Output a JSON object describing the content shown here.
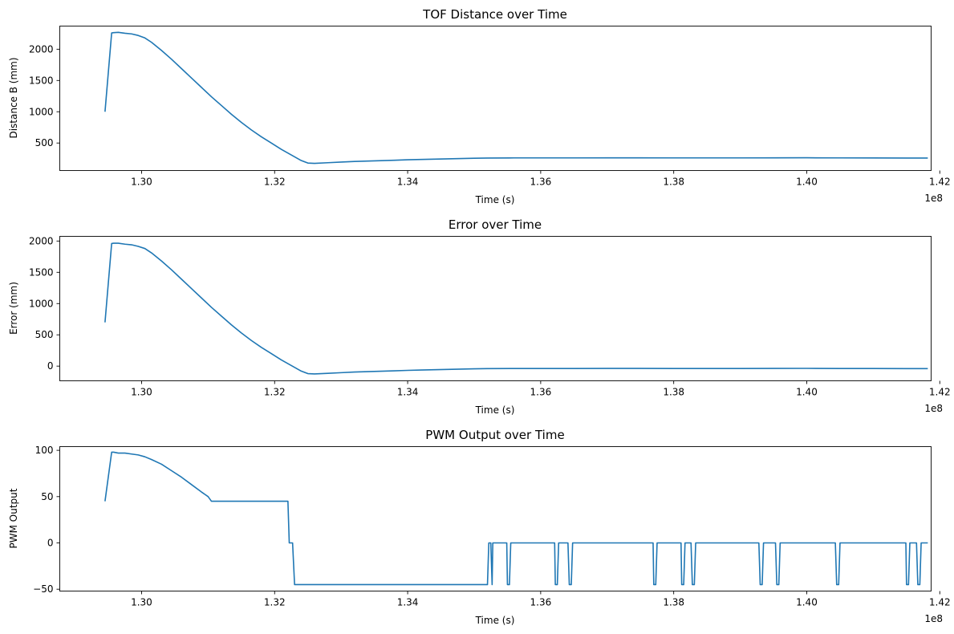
{
  "chart_data": [
    {
      "type": "line",
      "title": "TOF Distance over Time",
      "xlabel": "Time (s)",
      "ylabel": "Distance B (mm)",
      "x_offset_label": "1e8",
      "xlim": [
        1.2877,
        1.4187
      ],
      "ylim": [
        60,
        2370
      ],
      "xticks": [
        1.3,
        1.32,
        1.34,
        1.36,
        1.38,
        1.4,
        1.42
      ],
      "xtick_labels": [
        "1.30",
        "1.32",
        "1.34",
        "1.36",
        "1.38",
        "1.40",
        "1.42"
      ],
      "yticks": [
        500,
        1000,
        1500,
        2000
      ],
      "ytick_labels": [
        "500",
        "1000",
        "1500",
        "2000"
      ],
      "series": [
        {
          "name": "Distance B",
          "color": "#1f77b4",
          "x": [
            1.2945,
            1.2955,
            1.2958,
            1.2965,
            1.2975,
            1.2985,
            1.2995,
            1.3005,
            1.3015,
            1.303,
            1.3045,
            1.306,
            1.3075,
            1.309,
            1.3105,
            1.312,
            1.3135,
            1.315,
            1.3165,
            1.318,
            1.3195,
            1.321,
            1.3225,
            1.324,
            1.325,
            1.326,
            1.328,
            1.33,
            1.332,
            1.334,
            1.336,
            1.338,
            1.34,
            1.342,
            1.344,
            1.346,
            1.348,
            1.35,
            1.352,
            1.356,
            1.36,
            1.365,
            1.37,
            1.375,
            1.38,
            1.385,
            1.39,
            1.395,
            1.4,
            1.405,
            1.41,
            1.415,
            1.4182
          ],
          "values": [
            1000,
            2260,
            2265,
            2270,
            2255,
            2245,
            2220,
            2180,
            2110,
            1980,
            1840,
            1690,
            1540,
            1390,
            1240,
            1100,
            960,
            830,
            710,
            600,
            500,
            400,
            310,
            220,
            180,
            175,
            185,
            195,
            205,
            212,
            218,
            225,
            232,
            237,
            242,
            247,
            252,
            257,
            260,
            262,
            262,
            262,
            263,
            263,
            262,
            262,
            262,
            263,
            264,
            262,
            261,
            260,
            260
          ]
        }
      ]
    },
    {
      "type": "line",
      "title": "Error over Time",
      "xlabel": "Time (s)",
      "ylabel": "Error (mm)",
      "x_offset_label": "1e8",
      "xlim": [
        1.2877,
        1.4187
      ],
      "ylim": [
        -235,
        2075
      ],
      "xticks": [
        1.3,
        1.32,
        1.34,
        1.36,
        1.38,
        1.4,
        1.42
      ],
      "xtick_labels": [
        "1.30",
        "1.32",
        "1.34",
        "1.36",
        "1.38",
        "1.40",
        "1.42"
      ],
      "yticks": [
        0,
        500,
        1000,
        1500,
        2000
      ],
      "ytick_labels": [
        "0",
        "500",
        "1000",
        "1500",
        "2000"
      ],
      "series": [
        {
          "name": "Error",
          "color": "#1f77b4",
          "x": [
            1.2945,
            1.2955,
            1.2958,
            1.2965,
            1.2975,
            1.2985,
            1.2995,
            1.3005,
            1.3015,
            1.303,
            1.3045,
            1.306,
            1.3075,
            1.309,
            1.3105,
            1.312,
            1.3135,
            1.315,
            1.3165,
            1.318,
            1.3195,
            1.321,
            1.3225,
            1.324,
            1.325,
            1.326,
            1.328,
            1.33,
            1.332,
            1.334,
            1.336,
            1.338,
            1.34,
            1.342,
            1.344,
            1.346,
            1.348,
            1.35,
            1.352,
            1.356,
            1.36,
            1.365,
            1.37,
            1.375,
            1.38,
            1.385,
            1.39,
            1.395,
            1.4,
            1.405,
            1.41,
            1.415,
            1.4182
          ],
          "values": [
            700,
            1960,
            1965,
            1965,
            1950,
            1940,
            1915,
            1880,
            1810,
            1680,
            1540,
            1390,
            1240,
            1090,
            940,
            800,
            660,
            530,
            410,
            300,
            200,
            100,
            10,
            -80,
            -120,
            -125,
            -115,
            -105,
            -95,
            -88,
            -82,
            -75,
            -68,
            -63,
            -58,
            -53,
            -48,
            -43,
            -40,
            -38,
            -38,
            -38,
            -37,
            -37,
            -38,
            -38,
            -38,
            -37,
            -36,
            -38,
            -39,
            -40,
            -40
          ]
        }
      ]
    },
    {
      "type": "line",
      "title": "PWM Output over Time",
      "xlabel": "Time (s)",
      "ylabel": "PWM Output",
      "x_offset_label": "1e8",
      "xlim": [
        1.2877,
        1.4187
      ],
      "ylim": [
        -52,
        104
      ],
      "xticks": [
        1.3,
        1.32,
        1.34,
        1.36,
        1.38,
        1.4,
        1.42
      ],
      "xtick_labels": [
        "1.30",
        "1.32",
        "1.34",
        "1.36",
        "1.38",
        "1.40",
        "1.42"
      ],
      "yticks": [
        -50,
        0,
        50,
        100
      ],
      "ytick_labels": [
        "−50",
        "0",
        "50",
        "100"
      ],
      "series": [
        {
          "name": "PWM Output",
          "color": "#1f77b4",
          "x": [
            1.2945,
            1.2955,
            1.2958,
            1.2965,
            1.2975,
            1.2985,
            1.2995,
            1.3005,
            1.3015,
            1.303,
            1.3045,
            1.306,
            1.3075,
            1.309,
            1.31,
            1.3105,
            1.322,
            1.3222,
            1.3227,
            1.323,
            1.352,
            1.3522,
            1.3525,
            1.3527,
            1.3528,
            1.3549,
            1.355,
            1.3553,
            1.3555,
            1.3621,
            1.3622,
            1.3625,
            1.3627,
            1.3641,
            1.3643,
            1.3646,
            1.3648,
            1.3769,
            1.377,
            1.3773,
            1.3775,
            1.3811,
            1.3812,
            1.3815,
            1.3817,
            1.3826,
            1.3828,
            1.3831,
            1.3833,
            1.3928,
            1.393,
            1.3933,
            1.3935,
            1.3953,
            1.3955,
            1.3958,
            1.396,
            1.4043,
            1.4045,
            1.4048,
            1.405,
            1.4149,
            1.415,
            1.4153,
            1.4155,
            1.4165,
            1.4167,
            1.417,
            1.4172,
            1.4182
          ],
          "values": [
            45,
            98,
            98,
            97,
            97,
            96,
            95,
            93,
            90,
            85,
            78,
            71,
            63,
            55,
            50,
            45,
            45,
            0,
            0,
            -45,
            -45,
            0,
            0,
            -45,
            0,
            0,
            -45,
            -45,
            0,
            0,
            -45,
            -45,
            0,
            0,
            -45,
            -45,
            0,
            0,
            -45,
            -45,
            0,
            0,
            -45,
            -45,
            0,
            0,
            -45,
            -45,
            0,
            0,
            -45,
            -45,
            0,
            0,
            -45,
            -45,
            0,
            0,
            -45,
            -45,
            0,
            0,
            -45,
            -45,
            0,
            0,
            -45,
            -45,
            0,
            0
          ]
        }
      ]
    }
  ]
}
